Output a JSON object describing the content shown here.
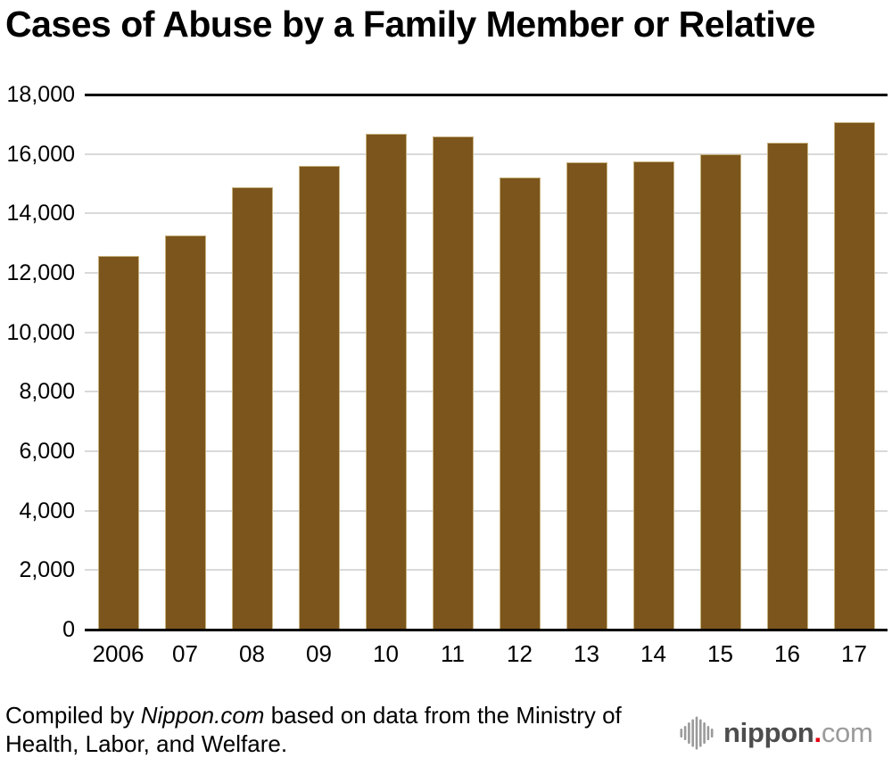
{
  "chart_data": {
    "type": "bar",
    "title": "Cases of Abuse by a Family Member or Relative",
    "categories": [
      "2006",
      "07",
      "08",
      "09",
      "10",
      "11",
      "12",
      "13",
      "14",
      "15",
      "16",
      "17"
    ],
    "values": [
      12569,
      13273,
      14889,
      15615,
      16668,
      16599,
      15202,
      15731,
      15739,
      15976,
      16384,
      17078
    ],
    "xlabel": "",
    "ylabel": "",
    "ylim": [
      0,
      18000
    ],
    "y_ticks": [
      0,
      2000,
      4000,
      6000,
      8000,
      10000,
      12000,
      14000,
      16000,
      18000
    ],
    "grid": true,
    "legend": "none",
    "bar_color": "#7b551b",
    "bar_border_color": "#c8b382",
    "gridline_color": "#d9d9d9",
    "axis_color": "#000000"
  },
  "footer": {
    "prefix": "Compiled by ",
    "source_name": "Nippon.com",
    "suffix": " based on data from the Ministry of Health, Labor, and Welfare."
  },
  "logo": {
    "icon": "nippon-soundwave-icon",
    "icon_color": "#9a9a9a",
    "name": "nippon",
    "dot": ".",
    "tld": "com",
    "name_color": "#4d4d4d",
    "dot_color": "#e60012",
    "tld_color": "#9b9b9b"
  }
}
